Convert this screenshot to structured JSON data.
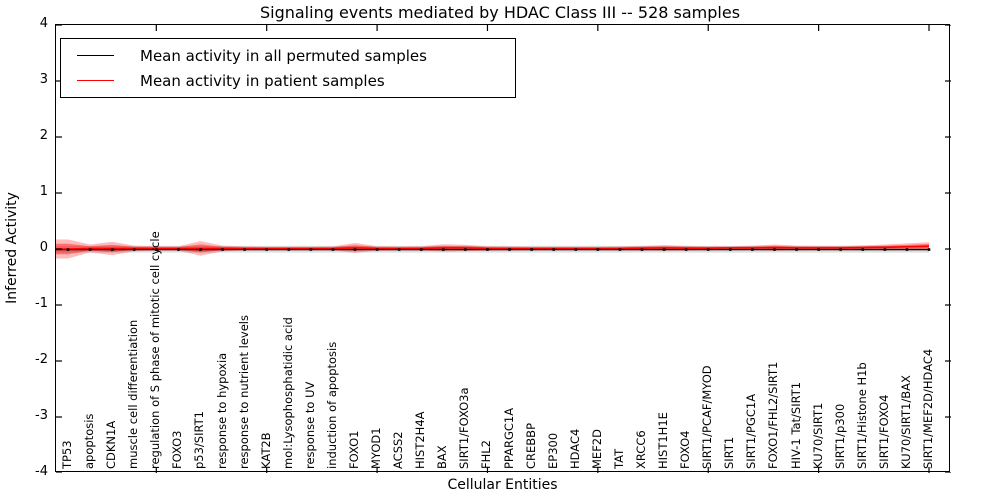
{
  "title": "Signaling events mediated by HDAC Class III -- 528 samples",
  "legend": {
    "items": [
      {
        "label": "Mean activity in all permuted samples",
        "color": "#000000"
      },
      {
        "label": "Mean activity in patient samples",
        "color": "#ff0000"
      }
    ]
  },
  "chart_data": {
    "type": "line",
    "title": "Signaling events mediated by HDAC Class III -- 528 samples",
    "xlabel": "Cellular Entities",
    "ylabel": "Inferred Activity",
    "ylim": [
      -4,
      4
    ],
    "ytick_labels": [
      "4",
      "3",
      "2",
      "1",
      "0",
      "-1",
      "-2",
      "-3",
      "-4"
    ],
    "grid": false,
    "legend_position": "upper left",
    "categories": [
      "TP53",
      "apoptosis",
      "CDKN1A",
      "muscle cell differentiation",
      "regulation of S phase of mitotic cell cycle",
      "FOXO3",
      "p53/SIRT1",
      "response to hypoxia",
      "response to nutrient levels",
      "KAT2B",
      "mol:Lysophosphatidic acid",
      "response to UV",
      "induction of apoptosis",
      "FOXO1",
      "MYOD1",
      "ACSS2",
      "HIST2H4A",
      "BAX",
      "SIRT1/FOXO3a",
      "FHL2",
      "PPARGC1A",
      "CREBBP",
      "EP300",
      "HDAC4",
      "MEF2D",
      "TAT",
      "XRCC6",
      "HIST1H1E",
      "FOXO4",
      "SIRT1/PCAF/MYOD",
      "SIRT1",
      "SIRT1/PGC1A",
      "FOXO1/FHL2/SIRT1",
      "HIV-1 Tat/SIRT1",
      "KU70/SIRT1",
      "SIRT1/p300",
      "SIRT1/Histone H1b",
      "SIRT1/FOXO4",
      "KU70/SIRT1/BAX",
      "SIRT1/MEF2D/HDAC4"
    ],
    "series": [
      {
        "name": "Mean activity in all permuted samples",
        "color": "#000000",
        "style": "solid-with-markers",
        "values": [
          -0.01,
          -0.01,
          -0.01,
          -0.01,
          -0.01,
          -0.01,
          -0.01,
          -0.01,
          -0.01,
          -0.01,
          -0.01,
          -0.01,
          -0.01,
          -0.01,
          -0.01,
          -0.01,
          -0.01,
          -0.01,
          -0.01,
          -0.01,
          -0.01,
          -0.01,
          -0.01,
          -0.01,
          -0.01,
          -0.01,
          -0.01,
          -0.01,
          -0.01,
          -0.01,
          -0.01,
          -0.01,
          -0.01,
          -0.01,
          -0.01,
          -0.01,
          -0.01,
          -0.01,
          -0.01,
          -0.01
        ]
      },
      {
        "name": "Mean activity in patient samples",
        "color": "#ff0000",
        "style": "solid",
        "values": [
          0.0,
          0.01,
          0.01,
          0.01,
          0.01,
          0.01,
          0.01,
          0.01,
          0.01,
          0.01,
          0.01,
          0.01,
          0.01,
          0.02,
          0.01,
          0.01,
          0.01,
          0.02,
          0.02,
          0.01,
          0.01,
          0.01,
          0.01,
          0.01,
          0.01,
          0.01,
          0.015,
          0.02,
          0.015,
          0.015,
          0.02,
          0.02,
          0.025,
          0.02,
          0.02,
          0.02,
          0.025,
          0.03,
          0.04,
          0.05
        ]
      }
    ],
    "bands": [
      {
        "name": "permuted-sample-range",
        "color": "#aaaaaa",
        "alpha": 0.4,
        "upper": 0.055,
        "lower": -0.065
      },
      {
        "name": "patient-sample-range",
        "color": "#ff0000",
        "alpha": 0.27,
        "halfwidths": [
          0.17,
          0.07,
          0.12,
          0.05,
          0.04,
          0.04,
          0.13,
          0.05,
          0.035,
          0.03,
          0.03,
          0.03,
          0.035,
          0.09,
          0.04,
          0.035,
          0.04,
          0.065,
          0.055,
          0.04,
          0.035,
          0.03,
          0.03,
          0.03,
          0.03,
          0.035,
          0.04,
          0.05,
          0.04,
          0.035,
          0.03,
          0.04,
          0.055,
          0.04,
          0.035,
          0.035,
          0.04,
          0.05,
          0.06,
          0.07
        ]
      }
    ],
    "xticks_every": 5
  }
}
